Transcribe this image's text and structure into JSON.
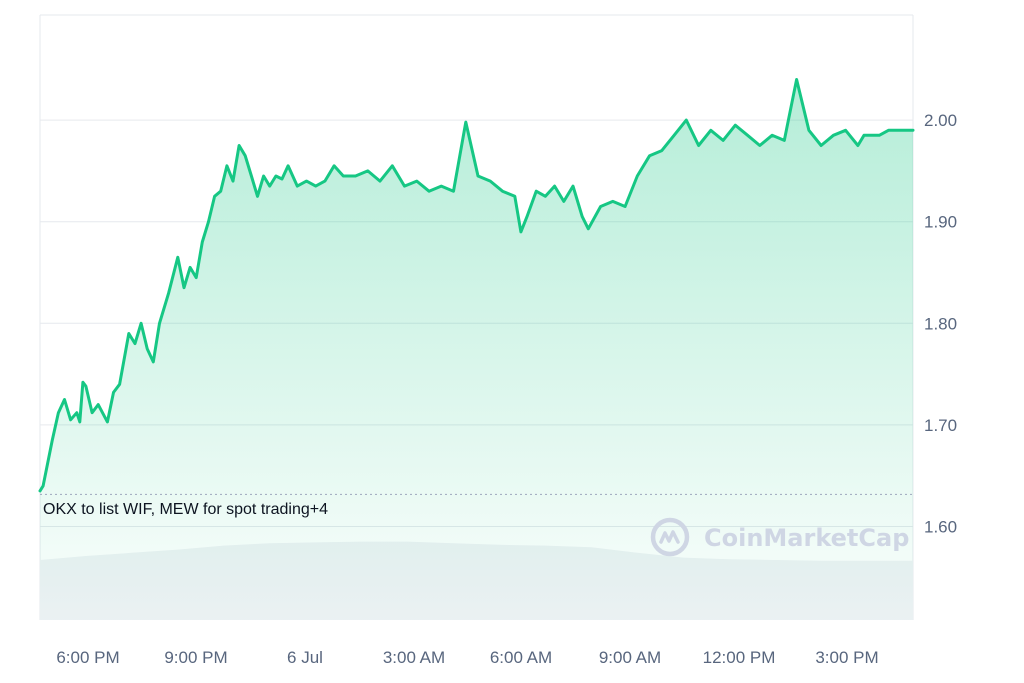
{
  "chart_data": {
    "type": "area",
    "title": "",
    "xlabel": "",
    "ylabel": "",
    "ylim": [
      1.5,
      2.1
    ],
    "grid": true,
    "y_ticks": [
      "1.60",
      "1.70",
      "1.80",
      "1.90",
      "2.00"
    ],
    "x_ticks": [
      "6:00 PM",
      "9:00 PM",
      "6 Jul",
      "3:00 AM",
      "6:00 AM",
      "9:00 AM",
      "12:00 PM",
      "3:00 PM"
    ],
    "series": [
      {
        "x": [
          "5 Jul 16:45",
          "5 Jul 16:50",
          "5 Jul 17:05",
          "5 Jul 17:15",
          "5 Jul 17:25",
          "5 Jul 17:35",
          "5 Jul 17:45",
          "5 Jul 17:50",
          "5 Jul 17:55",
          "5 Jul 18:00",
          "5 Jul 18:10",
          "5 Jul 18:20",
          "5 Jul 18:35",
          "5 Jul 18:45",
          "5 Jul 18:55",
          "5 Jul 19:10",
          "5 Jul 19:20",
          "5 Jul 19:30",
          "5 Jul 19:40",
          "5 Jul 19:50",
          "5 Jul 20:00",
          "5 Jul 20:15",
          "5 Jul 20:30",
          "5 Jul 20:40",
          "5 Jul 20:50",
          "5 Jul 21:00",
          "5 Jul 21:10",
          "5 Jul 21:20",
          "5 Jul 21:30",
          "5 Jul 21:40",
          "5 Jul 21:50",
          "5 Jul 22:00",
          "5 Jul 22:10",
          "5 Jul 22:20",
          "5 Jul 22:30",
          "5 Jul 22:40",
          "5 Jul 22:50",
          "5 Jul 23:00",
          "5 Jul 23:10",
          "5 Jul 23:20",
          "5 Jul 23:30",
          "5 Jul 23:45",
          "6 Jul 00:00",
          "6 Jul 00:15",
          "6 Jul 00:30",
          "6 Jul 00:45",
          "6 Jul 01:00",
          "6 Jul 01:20",
          "6 Jul 01:40",
          "6 Jul 02:00",
          "6 Jul 02:20",
          "6 Jul 02:40",
          "6 Jul 03:00",
          "6 Jul 03:20",
          "6 Jul 03:40",
          "6 Jul 04:00",
          "6 Jul 04:20",
          "6 Jul 04:40",
          "6 Jul 05:00",
          "6 Jul 05:20",
          "6 Jul 05:40",
          "6 Jul 05:50",
          "6 Jul 06:00",
          "6 Jul 06:15",
          "6 Jul 06:30",
          "6 Jul 06:45",
          "6 Jul 07:00",
          "6 Jul 07:15",
          "6 Jul 07:30",
          "6 Jul 07:40",
          "6 Jul 08:00",
          "6 Jul 08:20",
          "6 Jul 08:40",
          "6 Jul 09:00",
          "6 Jul 09:20",
          "6 Jul 09:40",
          "6 Jul 10:00",
          "6 Jul 10:20",
          "6 Jul 10:40",
          "6 Jul 11:00",
          "6 Jul 11:20",
          "6 Jul 11:40",
          "6 Jul 12:00",
          "6 Jul 12:20",
          "6 Jul 12:40",
          "6 Jul 13:00",
          "6 Jul 13:20",
          "6 Jul 13:40",
          "6 Jul 14:00",
          "6 Jul 14:20",
          "6 Jul 14:40",
          "6 Jul 15:00",
          "6 Jul 15:10",
          "6 Jul 15:20",
          "6 Jul 15:35",
          "6 Jul 15:50",
          "6 Jul 16:00",
          "6 Jul 16:15",
          "6 Jul 16:30"
        ],
        "values": [
          1.635,
          1.64,
          1.685,
          1.712,
          1.725,
          1.705,
          1.712,
          1.703,
          1.742,
          1.738,
          1.712,
          1.72,
          1.703,
          1.732,
          1.74,
          1.79,
          1.78,
          1.8,
          1.775,
          1.762,
          1.8,
          1.83,
          1.865,
          1.835,
          1.855,
          1.845,
          1.88,
          1.9,
          1.925,
          1.93,
          1.955,
          1.94,
          1.975,
          1.965,
          1.945,
          1.925,
          1.945,
          1.935,
          1.945,
          1.942,
          1.955,
          1.935,
          1.94,
          1.935,
          1.94,
          1.955,
          1.945,
          1.945,
          1.95,
          1.94,
          1.955,
          1.935,
          1.94,
          1.93,
          1.935,
          1.93,
          1.998,
          1.945,
          1.94,
          1.93,
          1.925,
          1.89,
          1.905,
          1.93,
          1.925,
          1.935,
          1.92,
          1.935,
          1.905,
          1.893,
          1.915,
          1.92,
          1.915,
          1.945,
          1.965,
          1.97,
          1.985,
          2.0,
          1.975,
          1.99,
          1.98,
          1.995,
          1.985,
          1.975,
          1.985,
          1.98,
          2.04,
          1.99,
          1.975,
          1.985,
          1.99,
          1.975,
          1.985,
          1.985,
          1.985,
          1.99,
          1.99,
          1.99,
          1.99
        ]
      }
    ],
    "volume_profile": [
      0.75,
      0.8,
      0.84,
      0.88,
      0.93,
      0.96,
      0.97,
      0.98,
      0.98,
      0.96,
      0.94,
      0.93,
      0.91,
      0.84,
      0.78,
      0.76,
      0.75,
      0.74,
      0.74,
      0.74
    ],
    "annotation": "OKX to list WIF, MEW for spot trading+4",
    "watermark": "CoinMarketCap",
    "colors": {
      "line": "#16c784",
      "area_top": "#16c784",
      "grid": "#e6e9ee",
      "volume": "#eff2f5",
      "axis_text": "#58667e",
      "watermark": "#cfd6e4"
    }
  }
}
